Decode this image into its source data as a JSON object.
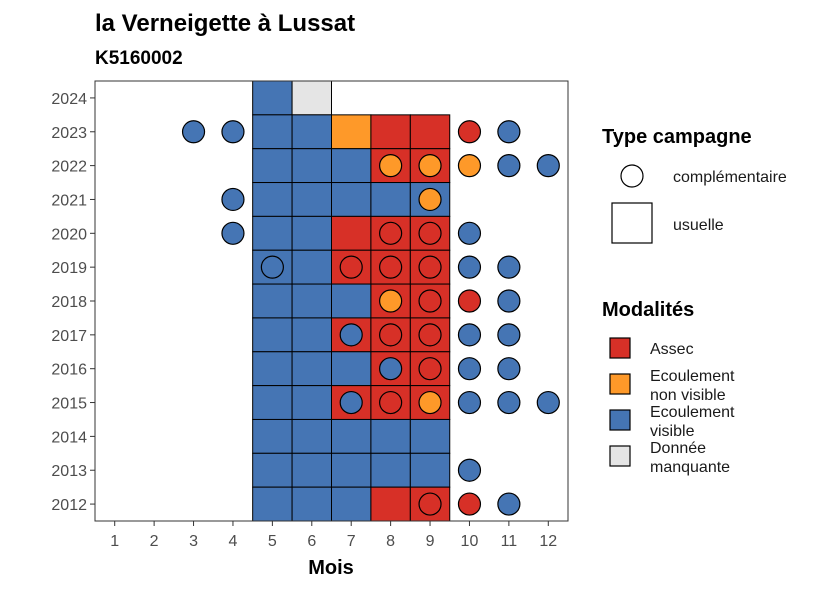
{
  "chart_data": {
    "type": "heatmap",
    "title": "la Verneigette à Lussat",
    "subtitle": "K5160002",
    "xlabel": "Mois",
    "ylabel": "",
    "x_ticks": [
      "1",
      "2",
      "3",
      "4",
      "5",
      "6",
      "7",
      "8",
      "9",
      "10",
      "11",
      "12"
    ],
    "y_ticks": [
      "2012",
      "2013",
      "2014",
      "2015",
      "2016",
      "2017",
      "2018",
      "2019",
      "2020",
      "2021",
      "2022",
      "2023",
      "2024"
    ],
    "colors": {
      "assec": "#d73027",
      "ecoulement_non_visible": "#fe9929",
      "ecoulement_visible": "#4575b4",
      "donnee_manquante": "#e5e5e5"
    },
    "usuelle": [
      {
        "year": 2024,
        "month": 5,
        "mod": "ecoulement_visible"
      },
      {
        "year": 2024,
        "month": 6,
        "mod": "donnee_manquante"
      },
      {
        "year": 2023,
        "month": 5,
        "mod": "ecoulement_visible"
      },
      {
        "year": 2023,
        "month": 6,
        "mod": "ecoulement_visible"
      },
      {
        "year": 2023,
        "month": 7,
        "mod": "ecoulement_non_visible"
      },
      {
        "year": 2023,
        "month": 8,
        "mod": "assec"
      },
      {
        "year": 2023,
        "month": 9,
        "mod": "assec"
      },
      {
        "year": 2022,
        "month": 5,
        "mod": "ecoulement_visible"
      },
      {
        "year": 2022,
        "month": 6,
        "mod": "ecoulement_visible"
      },
      {
        "year": 2022,
        "month": 7,
        "mod": "ecoulement_visible"
      },
      {
        "year": 2022,
        "month": 8,
        "mod": "assec"
      },
      {
        "year": 2022,
        "month": 9,
        "mod": "assec"
      },
      {
        "year": 2021,
        "month": 5,
        "mod": "ecoulement_visible"
      },
      {
        "year": 2021,
        "month": 6,
        "mod": "ecoulement_visible"
      },
      {
        "year": 2021,
        "month": 7,
        "mod": "ecoulement_visible"
      },
      {
        "year": 2021,
        "month": 8,
        "mod": "ecoulement_visible"
      },
      {
        "year": 2021,
        "month": 9,
        "mod": "ecoulement_visible"
      },
      {
        "year": 2020,
        "month": 5,
        "mod": "ecoulement_visible"
      },
      {
        "year": 2020,
        "month": 6,
        "mod": "ecoulement_visible"
      },
      {
        "year": 2020,
        "month": 7,
        "mod": "assec"
      },
      {
        "year": 2020,
        "month": 8,
        "mod": "assec"
      },
      {
        "year": 2020,
        "month": 9,
        "mod": "assec"
      },
      {
        "year": 2019,
        "month": 5,
        "mod": "ecoulement_visible"
      },
      {
        "year": 2019,
        "month": 6,
        "mod": "ecoulement_visible"
      },
      {
        "year": 2019,
        "month": 7,
        "mod": "assec"
      },
      {
        "year": 2019,
        "month": 8,
        "mod": "assec"
      },
      {
        "year": 2019,
        "month": 9,
        "mod": "assec"
      },
      {
        "year": 2018,
        "month": 5,
        "mod": "ecoulement_visible"
      },
      {
        "year": 2018,
        "month": 6,
        "mod": "ecoulement_visible"
      },
      {
        "year": 2018,
        "month": 7,
        "mod": "ecoulement_visible"
      },
      {
        "year": 2018,
        "month": 8,
        "mod": "assec"
      },
      {
        "year": 2018,
        "month": 9,
        "mod": "assec"
      },
      {
        "year": 2017,
        "month": 5,
        "mod": "ecoulement_visible"
      },
      {
        "year": 2017,
        "month": 6,
        "mod": "ecoulement_visible"
      },
      {
        "year": 2017,
        "month": 7,
        "mod": "assec"
      },
      {
        "year": 2017,
        "month": 8,
        "mod": "assec"
      },
      {
        "year": 2017,
        "month": 9,
        "mod": "assec"
      },
      {
        "year": 2016,
        "month": 5,
        "mod": "ecoulement_visible"
      },
      {
        "year": 2016,
        "month": 6,
        "mod": "ecoulement_visible"
      },
      {
        "year": 2016,
        "month": 7,
        "mod": "ecoulement_visible"
      },
      {
        "year": 2016,
        "month": 8,
        "mod": "assec"
      },
      {
        "year": 2016,
        "month": 9,
        "mod": "assec"
      },
      {
        "year": 2015,
        "month": 5,
        "mod": "ecoulement_visible"
      },
      {
        "year": 2015,
        "month": 6,
        "mod": "ecoulement_visible"
      },
      {
        "year": 2015,
        "month": 7,
        "mod": "assec"
      },
      {
        "year": 2015,
        "month": 8,
        "mod": "assec"
      },
      {
        "year": 2015,
        "month": 9,
        "mod": "assec"
      },
      {
        "year": 2014,
        "month": 5,
        "mod": "ecoulement_visible"
      },
      {
        "year": 2014,
        "month": 6,
        "mod": "ecoulement_visible"
      },
      {
        "year": 2014,
        "month": 7,
        "mod": "ecoulement_visible"
      },
      {
        "year": 2014,
        "month": 8,
        "mod": "ecoulement_visible"
      },
      {
        "year": 2014,
        "month": 9,
        "mod": "ecoulement_visible"
      },
      {
        "year": 2013,
        "month": 5,
        "mod": "ecoulement_visible"
      },
      {
        "year": 2013,
        "month": 6,
        "mod": "ecoulement_visible"
      },
      {
        "year": 2013,
        "month": 7,
        "mod": "ecoulement_visible"
      },
      {
        "year": 2013,
        "month": 8,
        "mod": "ecoulement_visible"
      },
      {
        "year": 2013,
        "month": 9,
        "mod": "ecoulement_visible"
      },
      {
        "year": 2012,
        "month": 5,
        "mod": "ecoulement_visible"
      },
      {
        "year": 2012,
        "month": 6,
        "mod": "ecoulement_visible"
      },
      {
        "year": 2012,
        "month": 7,
        "mod": "ecoulement_visible"
      },
      {
        "year": 2012,
        "month": 8,
        "mod": "assec"
      },
      {
        "year": 2012,
        "month": 9,
        "mod": "assec"
      }
    ],
    "complementaire": [
      {
        "year": 2023,
        "month": 3,
        "mod": "ecoulement_visible"
      },
      {
        "year": 2023,
        "month": 4,
        "mod": "ecoulement_visible"
      },
      {
        "year": 2023,
        "month": 10,
        "mod": "assec"
      },
      {
        "year": 2023,
        "month": 11,
        "mod": "ecoulement_visible"
      },
      {
        "year": 2022,
        "month": 8,
        "mod": "ecoulement_non_visible"
      },
      {
        "year": 2022,
        "month": 9,
        "mod": "ecoulement_non_visible"
      },
      {
        "year": 2022,
        "month": 10,
        "mod": "ecoulement_non_visible"
      },
      {
        "year": 2022,
        "month": 11,
        "mod": "ecoulement_visible"
      },
      {
        "year": 2022,
        "month": 12,
        "mod": "ecoulement_visible"
      },
      {
        "year": 2021,
        "month": 4,
        "mod": "ecoulement_visible"
      },
      {
        "year": 2021,
        "month": 9,
        "mod": "ecoulement_non_visible"
      },
      {
        "year": 2020,
        "month": 4,
        "mod": "ecoulement_visible"
      },
      {
        "year": 2020,
        "month": 8,
        "mod": "assec"
      },
      {
        "year": 2020,
        "month": 9,
        "mod": "assec"
      },
      {
        "year": 2020,
        "month": 10,
        "mod": "ecoulement_visible"
      },
      {
        "year": 2019,
        "month": 5,
        "mod": "ecoulement_visible"
      },
      {
        "year": 2019,
        "month": 7,
        "mod": "assec"
      },
      {
        "year": 2019,
        "month": 8,
        "mod": "assec"
      },
      {
        "year": 2019,
        "month": 9,
        "mod": "assec"
      },
      {
        "year": 2019,
        "month": 10,
        "mod": "ecoulement_visible"
      },
      {
        "year": 2019,
        "month": 11,
        "mod": "ecoulement_visible"
      },
      {
        "year": 2018,
        "month": 8,
        "mod": "ecoulement_non_visible"
      },
      {
        "year": 2018,
        "month": 9,
        "mod": "assec"
      },
      {
        "year": 2018,
        "month": 10,
        "mod": "assec"
      },
      {
        "year": 2018,
        "month": 11,
        "mod": "ecoulement_visible"
      },
      {
        "year": 2017,
        "month": 7,
        "mod": "ecoulement_visible"
      },
      {
        "year": 2017,
        "month": 8,
        "mod": "assec"
      },
      {
        "year": 2017,
        "month": 9,
        "mod": "assec"
      },
      {
        "year": 2017,
        "month": 10,
        "mod": "ecoulement_visible"
      },
      {
        "year": 2017,
        "month": 11,
        "mod": "ecoulement_visible"
      },
      {
        "year": 2016,
        "month": 8,
        "mod": "ecoulement_visible"
      },
      {
        "year": 2016,
        "month": 9,
        "mod": "assec"
      },
      {
        "year": 2016,
        "month": 10,
        "mod": "ecoulement_visible"
      },
      {
        "year": 2016,
        "month": 11,
        "mod": "ecoulement_visible"
      },
      {
        "year": 2015,
        "month": 7,
        "mod": "ecoulement_visible"
      },
      {
        "year": 2015,
        "month": 8,
        "mod": "assec"
      },
      {
        "year": 2015,
        "month": 9,
        "mod": "ecoulement_non_visible"
      },
      {
        "year": 2015,
        "month": 10,
        "mod": "ecoulement_visible"
      },
      {
        "year": 2015,
        "month": 11,
        "mod": "ecoulement_visible"
      },
      {
        "year": 2015,
        "month": 12,
        "mod": "ecoulement_visible"
      },
      {
        "year": 2013,
        "month": 10,
        "mod": "ecoulement_visible"
      },
      {
        "year": 2012,
        "month": 9,
        "mod": "assec"
      },
      {
        "year": 2012,
        "month": 10,
        "mod": "assec"
      },
      {
        "year": 2012,
        "month": 11,
        "mod": "ecoulement_visible"
      }
    ],
    "legend": {
      "type_title": "Type campagne",
      "type_items": [
        {
          "key": "complementaire",
          "label": "complémentaire"
        },
        {
          "key": "usuelle",
          "label": "usuelle"
        }
      ],
      "mod_title": "Modalités",
      "mod_items": [
        {
          "key": "assec",
          "lines": [
            "Assec"
          ]
        },
        {
          "key": "ecoulement_non_visible",
          "lines": [
            "Ecoulement",
            "non visible"
          ]
        },
        {
          "key": "ecoulement_visible",
          "lines": [
            "Ecoulement",
            "visible"
          ]
        },
        {
          "key": "donnee_manquante",
          "lines": [
            "Donnée",
            "manquante"
          ]
        }
      ]
    }
  }
}
